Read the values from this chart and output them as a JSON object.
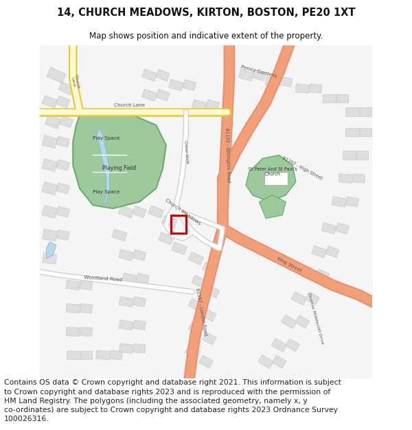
{
  "title": "14, CHURCH MEADOWS, KIRTON, BOSTON, PE20 1XT",
  "subtitle": "Map shows position and indicative extent of the property.",
  "footer": "Contains OS data © Crown copyright and database right 2021. This information is subject\nto Crown copyright and database rights 2023 and is reproduced with the permission of\nHM Land Registry. The polygons (including the associated geometry, namely x, y\nco-ordinates) are subject to Crown copyright and database rights 2023 Ordnance Survey\n100026316.",
  "title_fontsize": 10.5,
  "subtitle_fontsize": 8.5,
  "footer_fontsize": 7.8,
  "map_bg": "#f5f5f5",
  "road_major": "#f2a07a",
  "road_major_border": "#e89070",
  "road_minor": "#ffffff",
  "road_minor_border": "#d0d0d0",
  "green_area": "#9dc99d",
  "green_dark": "#6aaa6a",
  "blue_water": "#b3d9e8",
  "building_color": "#dedede",
  "building_outline": "#c8c8c8",
  "property_outline": "#cc0000",
  "yellow_fill": "#fef9d0",
  "yellow_border": "#e8c832",
  "text_road": "#555555",
  "title_color": "#111111"
}
